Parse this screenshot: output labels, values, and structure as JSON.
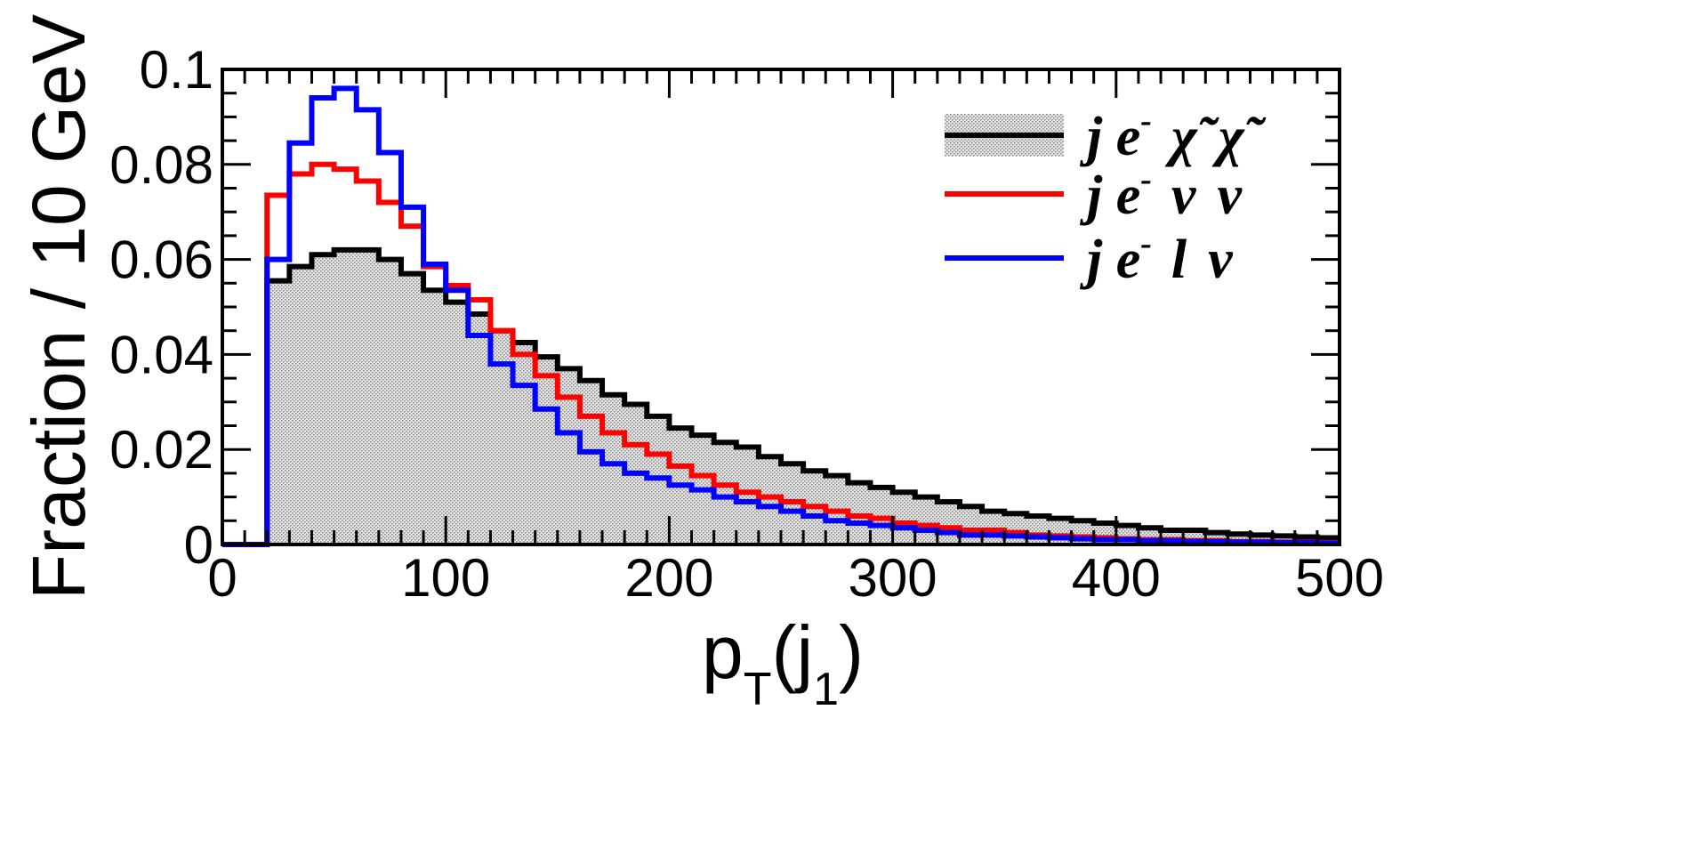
{
  "chart_data": {
    "type": "histogram",
    "xlabel": "p_T(j_1)",
    "xlabel_parts": {
      "main": "p",
      "sub": "T",
      "open": "(j",
      "sub2": "1",
      "close": ")"
    },
    "ylabel": "Fraction / 10 GeV",
    "xlim": [
      0,
      500
    ],
    "ylim": [
      0,
      0.1
    ],
    "bin_width": 10,
    "x_ticks": [
      "0",
      "100",
      "200",
      "300",
      "400",
      "500"
    ],
    "y_ticks": [
      "0",
      "0.02",
      "0.04",
      "0.06",
      "0.08",
      "0.1"
    ],
    "legend_position": "top-right",
    "series": [
      {
        "name": "j e⁻ χ̃ χ̃",
        "color": "#000000",
        "filled": true,
        "fill_color": "#d9d9d9",
        "values": [
          0,
          0,
          0.0555,
          0.0585,
          0.061,
          0.062,
          0.062,
          0.06,
          0.057,
          0.0535,
          0.051,
          0.0485,
          0.045,
          0.0425,
          0.0395,
          0.037,
          0.0345,
          0.0315,
          0.0295,
          0.027,
          0.0245,
          0.023,
          0.0215,
          0.0205,
          0.0185,
          0.017,
          0.0155,
          0.0145,
          0.013,
          0.012,
          0.011,
          0.01,
          0.009,
          0.008,
          0.007,
          0.0065,
          0.006,
          0.0055,
          0.005,
          0.0045,
          0.004,
          0.0035,
          0.003,
          0.003,
          0.0025,
          0.0022,
          0.002,
          0.0018,
          0.0016,
          0.0014
        ]
      },
      {
        "name": "j e⁻ ν ν",
        "color": "#ff0000",
        "filled": false,
        "values": [
          0,
          0,
          0.0735,
          0.078,
          0.08,
          0.079,
          0.0765,
          0.072,
          0.067,
          0.0585,
          0.0545,
          0.0515,
          0.045,
          0.04,
          0.0355,
          0.031,
          0.027,
          0.0235,
          0.021,
          0.019,
          0.0165,
          0.0145,
          0.0125,
          0.011,
          0.01,
          0.009,
          0.008,
          0.007,
          0.006,
          0.0055,
          0.0045,
          0.004,
          0.0035,
          0.003,
          0.003,
          0.0025,
          0.002,
          0.0018,
          0.0016,
          0.0014,
          0.0012,
          0.001,
          0.001,
          0.0008,
          0.0008,
          0.0006,
          0.0006,
          0.0005,
          0.0005,
          0.0004
        ]
      },
      {
        "name": "j e⁻ l ν",
        "color": "#0000ff",
        "filled": false,
        "values": [
          0,
          0,
          0.06,
          0.0845,
          0.094,
          0.096,
          0.0915,
          0.0825,
          0.071,
          0.059,
          0.0535,
          0.044,
          0.038,
          0.0335,
          0.0285,
          0.0235,
          0.0195,
          0.017,
          0.015,
          0.014,
          0.0125,
          0.0115,
          0.01,
          0.009,
          0.008,
          0.007,
          0.006,
          0.005,
          0.0045,
          0.004,
          0.0035,
          0.003,
          0.0025,
          0.002,
          0.002,
          0.0018,
          0.0016,
          0.0014,
          0.0012,
          0.001,
          0.001,
          0.0008,
          0.0008,
          0.0006,
          0.0006,
          0.0005,
          0.0005,
          0.0004,
          0.0004,
          0.0003
        ]
      }
    ],
    "legend": [
      {
        "parts": [
          "j e",
          "-",
          "χ̃",
          "χ̃"
        ]
      },
      {
        "parts": [
          "j e",
          "-",
          "ν",
          "ν"
        ]
      },
      {
        "parts": [
          "j e",
          "-",
          "l",
          "ν"
        ]
      }
    ]
  }
}
